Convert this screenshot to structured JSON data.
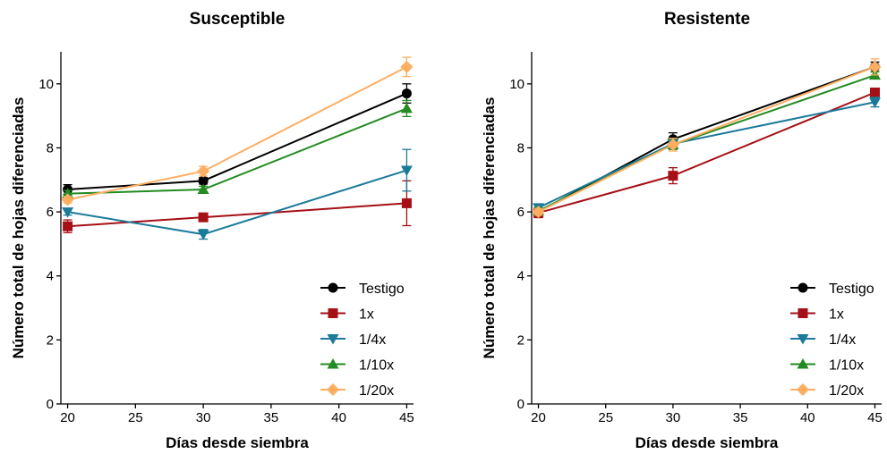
{
  "chart_data": [
    {
      "type": "line",
      "title": "Susceptible",
      "xlabel": "Días desde siembra",
      "ylabel": "Número total de hojas diferenciadas",
      "xlim": [
        19.5,
        45.5
      ],
      "ylim": [
        0,
        11
      ],
      "xticks": [
        20,
        25,
        30,
        35,
        40,
        45
      ],
      "yticks": [
        0,
        2,
        4,
        6,
        8,
        10
      ],
      "x": [
        20,
        30,
        45
      ],
      "legend_position": "bottom-right",
      "series": [
        {
          "name": "Testigo",
          "marker": "circle",
          "color": "#000000",
          "values": [
            6.7,
            6.97,
            9.7
          ],
          "errors": [
            0.15,
            0.1,
            0.3
          ]
        },
        {
          "name": "1x",
          "marker": "square",
          "color": "#a50f15",
          "values": [
            5.55,
            5.83,
            6.27
          ],
          "errors": [
            0.2,
            0.1,
            0.7
          ]
        },
        {
          "name": "1/4x",
          "marker": "triangle-down",
          "color": "#1b7a9a",
          "values": [
            6.0,
            5.3,
            7.3
          ],
          "errors": [
            0.1,
            0.15,
            0.65
          ]
        },
        {
          "name": "1/10x",
          "marker": "triangle-up",
          "color": "#238b21",
          "values": [
            6.57,
            6.7,
            9.23
          ],
          "errors": [
            0.1,
            0.1,
            0.25
          ]
        },
        {
          "name": "1/20x",
          "marker": "diamond",
          "color": "#fdae61",
          "values": [
            6.38,
            7.27,
            10.53
          ],
          "errors": [
            0.1,
            0.15,
            0.3
          ]
        }
      ]
    },
    {
      "type": "line",
      "title": "Resistente",
      "xlabel": "Días desde siembra",
      "ylabel": "Número total de hojas diferenciadas",
      "xlim": [
        19.5,
        45.5
      ],
      "ylim": [
        0,
        11
      ],
      "xticks": [
        20,
        25,
        30,
        35,
        40,
        45
      ],
      "yticks": [
        0,
        2,
        4,
        6,
        8,
        10
      ],
      "x": [
        20,
        30,
        45
      ],
      "legend_position": "bottom-right",
      "series": [
        {
          "name": "Testigo",
          "marker": "circle",
          "color": "#000000",
          "values": [
            6.0,
            8.27,
            10.53
          ],
          "errors": [
            0.1,
            0.2,
            0.15
          ]
        },
        {
          "name": "1x",
          "marker": "square",
          "color": "#a50f15",
          "values": [
            5.97,
            7.13,
            9.73
          ],
          "errors": [
            0.15,
            0.25,
            0.1
          ]
        },
        {
          "name": "1/4x",
          "marker": "triangle-down",
          "color": "#1b7a9a",
          "values": [
            6.13,
            8.13,
            9.43
          ],
          "errors": [
            0.1,
            0.15,
            0.15
          ]
        },
        {
          "name": "1/10x",
          "marker": "triangle-up",
          "color": "#238b21",
          "values": [
            6.03,
            8.1,
            10.27
          ],
          "errors": [
            0.1,
            0.15,
            0.1
          ]
        },
        {
          "name": "1/20x",
          "marker": "diamond",
          "color": "#fdae61",
          "values": [
            6.0,
            8.1,
            10.53
          ],
          "errors": [
            0.1,
            0.2,
            0.25
          ]
        }
      ]
    }
  ]
}
